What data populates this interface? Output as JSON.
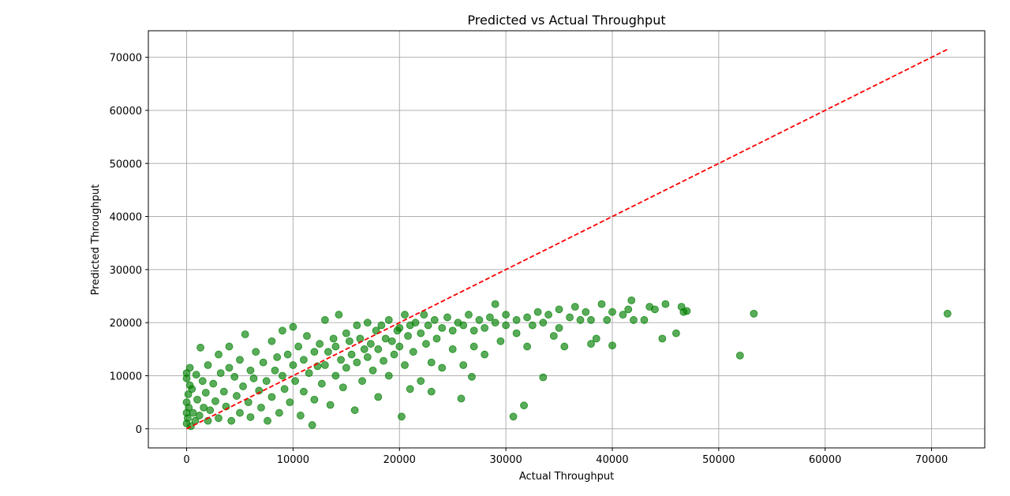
{
  "chart_data": {
    "type": "scatter",
    "title": "Predicted vs Actual Throughput",
    "xlabel": "Actual Throughput",
    "ylabel": "Predicted Throughput",
    "xlim": [
      -3600,
      75000
    ],
    "ylim": [
      -3600,
      75000
    ],
    "xticks": [
      0,
      10000,
      20000,
      30000,
      40000,
      50000,
      60000,
      70000
    ],
    "yticks": [
      0,
      10000,
      20000,
      30000,
      40000,
      50000,
      60000,
      70000
    ],
    "grid": true,
    "colors": {
      "points": "#008000",
      "reference_line": "#ff0000",
      "grid": "#b0b0b0"
    },
    "reference_line": {
      "style": "dashed",
      "from": [
        0,
        0
      ],
      "to": [
        71500,
        71500
      ]
    },
    "series": [
      {
        "points": [
          [
            0,
            1000
          ],
          [
            0,
            3000
          ],
          [
            0,
            5000
          ],
          [
            0,
            9500
          ],
          [
            0,
            10500
          ],
          [
            100,
            2000
          ],
          [
            150,
            6500
          ],
          [
            200,
            4000
          ],
          [
            300,
            11500
          ],
          [
            300,
            8200
          ],
          [
            400,
            500
          ],
          [
            500,
            7500
          ],
          [
            600,
            3000
          ],
          [
            800,
            1500
          ],
          [
            900,
            10200
          ],
          [
            1000,
            5500
          ],
          [
            1200,
            2500
          ],
          [
            1300,
            15300
          ],
          [
            1500,
            9000
          ],
          [
            1600,
            4000
          ],
          [
            1800,
            6800
          ],
          [
            2000,
            12000
          ],
          [
            2000,
            1500
          ],
          [
            2200,
            3500
          ],
          [
            2500,
            8500
          ],
          [
            2700,
            5200
          ],
          [
            3000,
            14000
          ],
          [
            3000,
            2000
          ],
          [
            3200,
            10500
          ],
          [
            3500,
            7000
          ],
          [
            3700,
            4200
          ],
          [
            4000,
            11500
          ],
          [
            4000,
            15500
          ],
          [
            4200,
            1500
          ],
          [
            4500,
            9800
          ],
          [
            4700,
            6200
          ],
          [
            5000,
            13000
          ],
          [
            5000,
            3000
          ],
          [
            5300,
            8000
          ],
          [
            5500,
            17800
          ],
          [
            5800,
            5000
          ],
          [
            6000,
            11000
          ],
          [
            6000,
            2200
          ],
          [
            6300,
            9500
          ],
          [
            6500,
            14500
          ],
          [
            6800,
            7200
          ],
          [
            7000,
            4000
          ],
          [
            7200,
            12500
          ],
          [
            7500,
            9000
          ],
          [
            7600,
            1500
          ],
          [
            8000,
            16500
          ],
          [
            8000,
            6000
          ],
          [
            8300,
            11000
          ],
          [
            8500,
            13500
          ],
          [
            8700,
            3000
          ],
          [
            9000,
            10000
          ],
          [
            9000,
            18500
          ],
          [
            9200,
            7500
          ],
          [
            9500,
            14000
          ],
          [
            9700,
            5000
          ],
          [
            10000,
            12000
          ],
          [
            10000,
            19200
          ],
          [
            10200,
            9000
          ],
          [
            10500,
            15500
          ],
          [
            10700,
            2500
          ],
          [
            11000,
            13000
          ],
          [
            11000,
            7000
          ],
          [
            11300,
            17500
          ],
          [
            11500,
            10500
          ],
          [
            11800,
            700
          ],
          [
            12000,
            14500
          ],
          [
            12000,
            5500
          ],
          [
            12300,
            11800
          ],
          [
            12500,
            16000
          ],
          [
            12700,
            8500
          ],
          [
            13000,
            20500
          ],
          [
            13000,
            12000
          ],
          [
            13300,
            14500
          ],
          [
            13500,
            4500
          ],
          [
            13800,
            17000
          ],
          [
            14000,
            10000
          ],
          [
            14000,
            15500
          ],
          [
            14300,
            21500
          ],
          [
            14500,
            13000
          ],
          [
            14700,
            7800
          ],
          [
            15000,
            18000
          ],
          [
            15000,
            11500
          ],
          [
            15300,
            16500
          ],
          [
            15500,
            14000
          ],
          [
            15800,
            3500
          ],
          [
            16000,
            19500
          ],
          [
            16000,
            12500
          ],
          [
            16300,
            17000
          ],
          [
            16500,
            9000
          ],
          [
            16700,
            15000
          ],
          [
            17000,
            20000
          ],
          [
            17000,
            13500
          ],
          [
            17300,
            16000
          ],
          [
            17500,
            11000
          ],
          [
            17800,
            18500
          ],
          [
            18000,
            6000
          ],
          [
            18000,
            15000
          ],
          [
            18300,
            19500
          ],
          [
            18500,
            12800
          ],
          [
            18700,
            17000
          ],
          [
            19000,
            20500
          ],
          [
            19000,
            10000
          ],
          [
            19300,
            16500
          ],
          [
            19500,
            14000
          ],
          [
            19800,
            18500
          ],
          [
            20000,
            19000
          ],
          [
            20000,
            15500
          ],
          [
            20200,
            2300
          ],
          [
            20500,
            21500
          ],
          [
            20500,
            12000
          ],
          [
            20800,
            17500
          ],
          [
            21000,
            19500
          ],
          [
            21000,
            7500
          ],
          [
            21300,
            14500
          ],
          [
            21500,
            20000
          ],
          [
            22000,
            18000
          ],
          [
            22000,
            9000
          ],
          [
            22300,
            21500
          ],
          [
            22500,
            16000
          ],
          [
            22700,
            19500
          ],
          [
            23000,
            12500
          ],
          [
            23000,
            7000
          ],
          [
            23300,
            20500
          ],
          [
            23500,
            17000
          ],
          [
            24000,
            19000
          ],
          [
            24000,
            11500
          ],
          [
            24500,
            21000
          ],
          [
            25000,
            18500
          ],
          [
            25000,
            15000
          ],
          [
            25500,
            20000
          ],
          [
            25800,
            5700
          ],
          [
            26000,
            19500
          ],
          [
            26000,
            12000
          ],
          [
            26500,
            21500
          ],
          [
            26800,
            9800
          ],
          [
            27000,
            18500
          ],
          [
            27000,
            15500
          ],
          [
            27500,
            20500
          ],
          [
            28000,
            19000
          ],
          [
            28000,
            14000
          ],
          [
            28500,
            21000
          ],
          [
            29000,
            20000
          ],
          [
            29000,
            23500
          ],
          [
            29500,
            16500
          ],
          [
            30000,
            19500
          ],
          [
            30000,
            21500
          ],
          [
            30700,
            2300
          ],
          [
            31000,
            20500
          ],
          [
            31000,
            18000
          ],
          [
            31700,
            4400
          ],
          [
            32000,
            21000
          ],
          [
            32000,
            15500
          ],
          [
            32500,
            19500
          ],
          [
            33000,
            22000
          ],
          [
            33500,
            9700
          ],
          [
            33500,
            20000
          ],
          [
            34000,
            21500
          ],
          [
            34500,
            17500
          ],
          [
            35000,
            22500
          ],
          [
            35000,
            19000
          ],
          [
            35500,
            15500
          ],
          [
            36000,
            21000
          ],
          [
            36500,
            23000
          ],
          [
            37000,
            20500
          ],
          [
            37500,
            22000
          ],
          [
            38000,
            16000
          ],
          [
            38000,
            20500
          ],
          [
            38500,
            17000
          ],
          [
            39000,
            23500
          ],
          [
            39500,
            20500
          ],
          [
            40000,
            22000
          ],
          [
            40000,
            15700
          ],
          [
            41000,
            21500
          ],
          [
            41500,
            22500
          ],
          [
            41800,
            24200
          ],
          [
            42000,
            20500
          ],
          [
            43000,
            20500
          ],
          [
            43500,
            23000
          ],
          [
            44000,
            22500
          ],
          [
            44700,
            17000
          ],
          [
            45000,
            23500
          ],
          [
            46000,
            18000
          ],
          [
            46500,
            23000
          ],
          [
            46700,
            22000
          ],
          [
            47000,
            22200
          ],
          [
            52000,
            13800
          ],
          [
            53300,
            21700
          ],
          [
            71500,
            21700
          ]
        ]
      }
    ]
  }
}
